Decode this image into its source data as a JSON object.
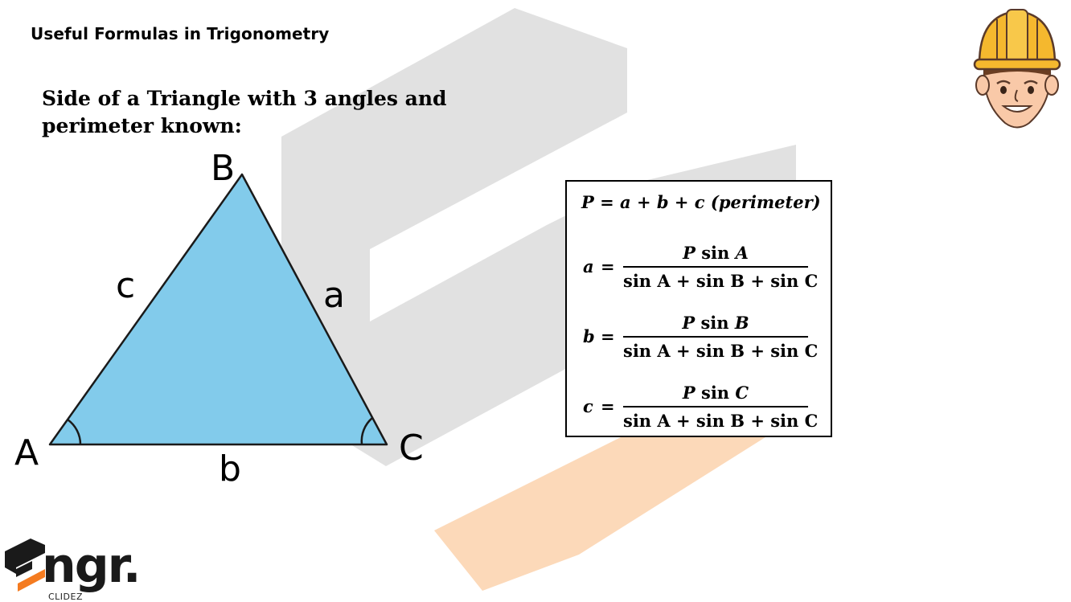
{
  "header": {
    "title": "Useful Formulas in Trigonometry"
  },
  "section": {
    "title": "Side of a Triangle with 3 angles and perimeter known:"
  },
  "triangle": {
    "vertex_labels": {
      "A": "A",
      "B": "B",
      "C": "C"
    },
    "side_labels": {
      "a": "a",
      "b": "b",
      "c": "c"
    },
    "fill_color": "#82CBEB",
    "stroke_color": "#1a1a1a"
  },
  "formulas": {
    "perimeter": {
      "P": "P",
      "eq": "=",
      "a": "a",
      "plus1": "+",
      "b": "b",
      "plus2": "+",
      "c": "c",
      "note": "(perimeter)"
    },
    "side_a": {
      "lhs": "a",
      "eq": "=",
      "numerator_fn": "sin",
      "numerator_P": "P",
      "numerator_angle": "A",
      "denominator": "sin A + sin B + sin C"
    },
    "side_b": {
      "lhs": "b",
      "eq": "=",
      "numerator_fn": "sin",
      "numerator_P": "P",
      "numerator_angle": "B",
      "denominator": "sin A + sin B + sin C"
    },
    "side_c": {
      "lhs": "c",
      "eq": "=",
      "numerator_fn": "sin",
      "numerator_P": "P",
      "numerator_angle": "C",
      "denominator": "sin A + sin B + sin C"
    }
  },
  "brand": {
    "logo_text": "ngr.",
    "sub_text": "CLIDEZ",
    "accent_color": "#F47B20"
  },
  "mascot": {
    "icon": "engineer-mascot-icon",
    "helmet_color": "#F5B82E"
  }
}
